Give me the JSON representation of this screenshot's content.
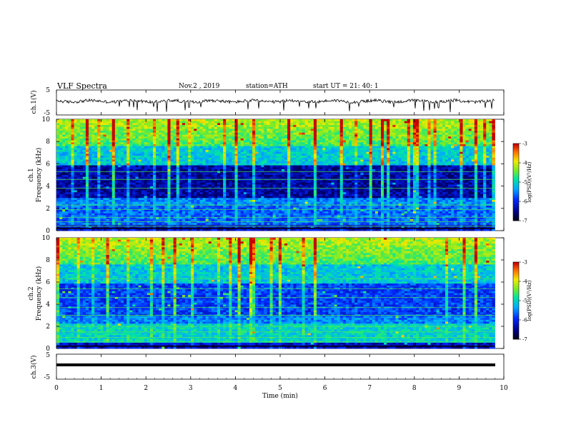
{
  "header": {
    "title": "VLF  Spectra",
    "date": "Nov.2  , 2019",
    "station": "station=ATH",
    "start": "start  UT  =    21: 40: 1"
  },
  "chart_data": [
    {
      "type": "line",
      "panel": "ch1-waveform",
      "ylabel": "ch.1(V)",
      "ylim": [
        -5,
        5
      ],
      "yticks": [
        5,
        -5
      ],
      "xlim": [
        0,
        10
      ],
      "x_end": 9.8,
      "baseline": 0.5,
      "description_values": "noisy waveform around ~0.5 V with downward spikes to about -1.5 V"
    },
    {
      "type": "heatmap",
      "panel": "ch1-spectrogram",
      "ylabel": "ch.1\nFrequency  (kHz)",
      "ylim": [
        0,
        10
      ],
      "yticks": [
        0,
        2,
        4,
        6,
        8,
        10
      ],
      "xlim": [
        0,
        10
      ],
      "x_end": 9.8,
      "colorbar": {
        "label": "log(PSD)(V²/Hz)",
        "range": [
          -7,
          -3
        ],
        "ticks": [
          -3,
          -4,
          -5,
          -6,
          -7
        ]
      }
    },
    {
      "type": "heatmap",
      "panel": "ch2-spectrogram",
      "ylabel": "ch.2\nFrequency  (kHz)",
      "ylim": [
        0,
        10
      ],
      "yticks": [
        0,
        2,
        4,
        6,
        8,
        10
      ],
      "xlim": [
        0,
        10
      ],
      "x_end": 9.8,
      "colorbar": {
        "label": "log(PSD)(V²/Hz)",
        "range": [
          -7,
          -3
        ],
        "ticks": [
          -3,
          -4,
          -5,
          -6,
          -7
        ]
      }
    },
    {
      "type": "line",
      "panel": "ch3-waveform",
      "ylabel": "ch.3(V)",
      "ylim": [
        -5,
        5
      ],
      "yticks": [
        5,
        -5
      ],
      "xlim": [
        0,
        10
      ],
      "x_end": 9.8,
      "baseline": 0
    }
  ],
  "xaxis": {
    "label": "Time  (min)",
    "ticks": [
      0,
      1,
      2,
      3,
      4,
      5,
      6,
      7,
      8,
      9,
      10
    ]
  }
}
